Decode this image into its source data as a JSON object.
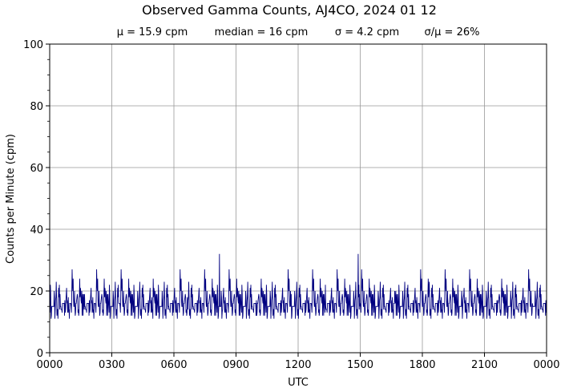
{
  "chart_data": {
    "type": "line",
    "title": "Observed Gamma Counts, AJ4CO, 2024 01 12",
    "stats": {
      "mean": "μ = 15.9 cpm",
      "median": "median = 16 cpm",
      "sigma": "σ = 4.2 cpm",
      "ratio": "σ/μ = 26%"
    },
    "xlabel": "UTC",
    "ylabel": "Counts per Minute (cpm)",
    "x_ticks": [
      "0000",
      "0300",
      "0600",
      "0900",
      "1200",
      "1500",
      "1800",
      "2100",
      "0000"
    ],
    "y_ticks": [
      0,
      20,
      40,
      60,
      80,
      100
    ],
    "ylim": [
      0,
      100
    ],
    "xlim_minutes": [
      0,
      1440
    ],
    "grid": true,
    "series": [
      {
        "color": "#000080",
        "sample_interval_minutes": 1,
        "values": [
          15,
          12,
          18,
          14,
          20,
          11,
          16,
          13,
          17,
          24,
          19,
          15,
          14,
          16,
          22,
          13,
          18,
          15,
          12,
          17,
          16,
          19,
          14,
          21,
          15,
          13,
          18,
          16,
          11,
          17,
          20,
          14,
          16,
          23,
          15,
          12,
          19,
          17,
          14,
          16,
          18,
          13,
          15,
          21,
          16,
          14,
          17,
          12,
          19,
          15,
          16,
          20,
          13,
          18,
          14,
          27,
          15,
          17,
          12,
          16,
          19,
          14,
          22,
          15,
          13,
          17,
          16,
          18,
          11,
          20,
          15,
          14,
          19,
          16,
          13,
          17,
          24,
          15,
          18,
          12,
          16,
          14,
          21,
          17,
          15,
          13,
          19,
          16,
          12,
          18,
          15,
          20,
          14,
          17,
          16,
          13,
          22,
          15,
          18,
          11
        ],
        "notable_peaks": [
          {
            "time": "0812",
            "value": 32
          },
          {
            "time": "1454",
            "value": 32
          }
        ]
      }
    ]
  }
}
